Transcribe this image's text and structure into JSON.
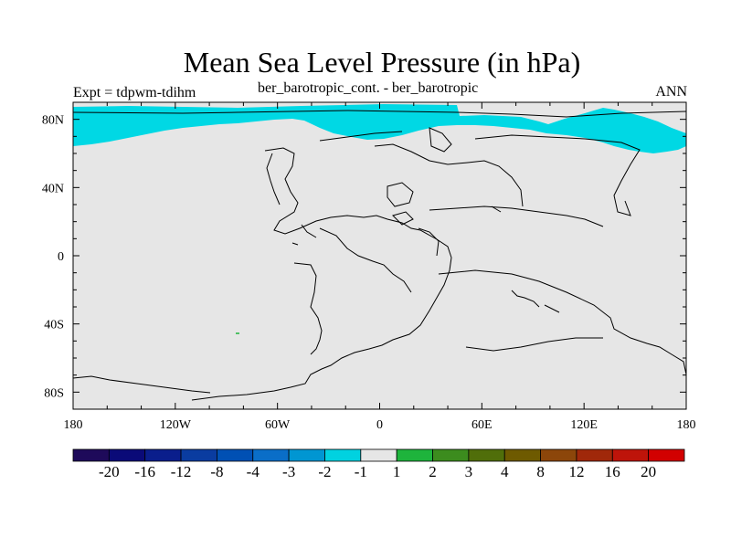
{
  "title": "Mean Sea Level Pressure (in hPa)",
  "experiment": "Expt = tdpwm-tdihm",
  "comparison": "ber_barotropic_cont. - ber_barotropic",
  "season": "ANN",
  "colors": {
    "land_fill": "#e6e6e6",
    "anomaly_fill": "#00d8e4",
    "coast": "#000000"
  },
  "axes": {
    "lon_labels": [
      "180",
      "120W",
      "60W",
      "0",
      "60E",
      "120E",
      "180"
    ],
    "lat_labels": [
      "80N",
      "40N",
      "0",
      "40S",
      "80S"
    ]
  },
  "colorbar": {
    "labels": [
      "-20",
      "-16",
      "-12",
      "-8",
      "-4",
      "-3",
      "-2",
      "-1",
      "1",
      "2",
      "3",
      "4",
      "8",
      "12",
      "16",
      "20"
    ],
    "colors": [
      "#1e0a5a",
      "#0a0a78",
      "#0a1e8c",
      "#0a3ca0",
      "#0050b4",
      "#0a6ec8",
      "#0096d2",
      "#00d2e0",
      "#e6e6e6",
      "#1eb43c",
      "#3c8c1e",
      "#506e0a",
      "#6e5a00",
      "#8c460a",
      "#a0280a",
      "#be140a",
      "#d20000"
    ]
  }
}
